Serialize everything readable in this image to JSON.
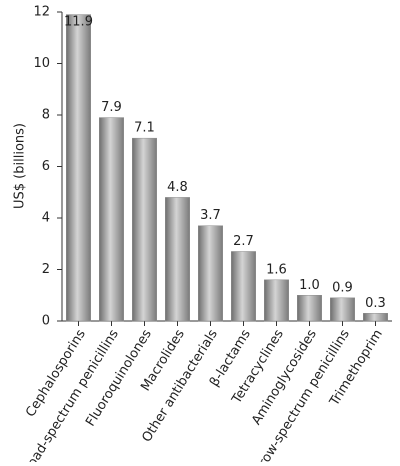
{
  "chart_data": {
    "type": "bar",
    "ylabel": "US$ (billions)",
    "categories": [
      "Cephalosporins",
      "Broad-spectrum penicillins",
      "Fluoroquinolones",
      "Macrolides",
      "Other antibacterials",
      "β-lactams",
      "Tetracyclines",
      "Aminoglycosides",
      "Narrow-spectrum penicillins",
      "Trimethoprim"
    ],
    "values": [
      11.9,
      7.9,
      7.1,
      4.8,
      3.7,
      2.7,
      1.6,
      1.0,
      0.9,
      0.3
    ],
    "value_labels": [
      "11.9",
      "7.9",
      "7.1",
      "4.8",
      "3.7",
      "2.7",
      "1.6",
      "1.0",
      "0.9",
      "0.3"
    ],
    "color": "#8c8c8c",
    "ylim": [
      0,
      12
    ],
    "yticks": [
      0,
      2,
      4,
      6,
      8,
      10,
      12
    ],
    "grid": false
  }
}
